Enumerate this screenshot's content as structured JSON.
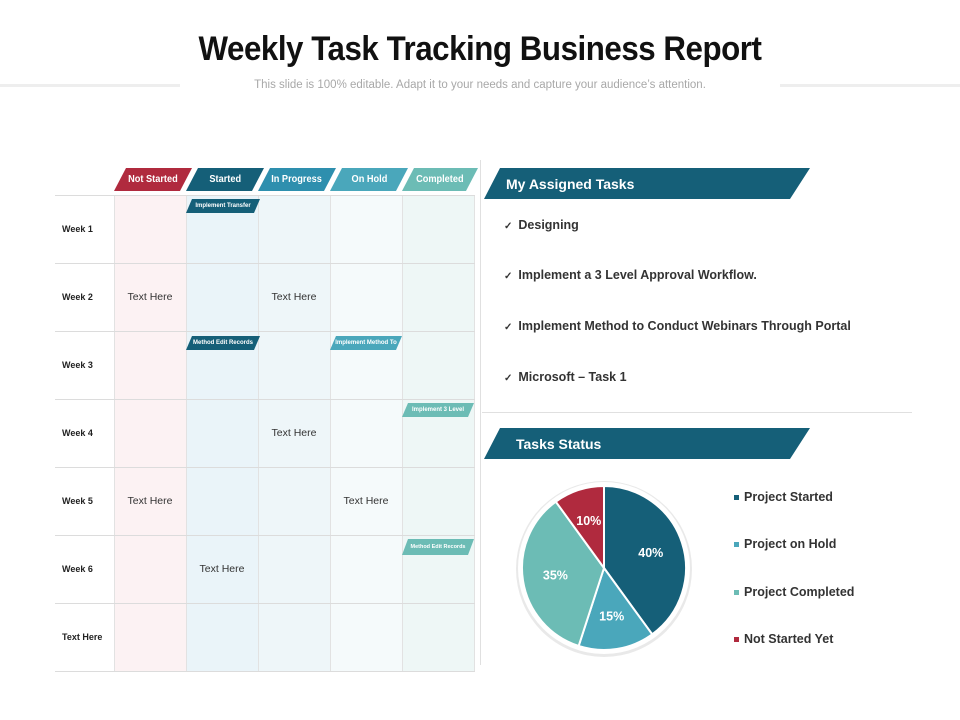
{
  "header": {
    "title": "Weekly Task Tracking Business Report",
    "subtitle": "This slide is 100% editable. Adapt it to your needs and capture your audience’s attention."
  },
  "grid": {
    "columns": [
      {
        "label": "Not Started",
        "color": "#b02a3e",
        "bg": "#fcf2f3"
      },
      {
        "label": "Started",
        "color": "#155f78",
        "bg": "#eaf4f9"
      },
      {
        "label": "In Progress",
        "color": "#2e8fae",
        "bg": "#eef6f9"
      },
      {
        "label": "On Hold",
        "color": "#4aa7bb",
        "bg": "#f5fafb"
      },
      {
        "label": "Completed",
        "color": "#6cbcb5",
        "bg": "#eef7f6"
      }
    ],
    "rows": [
      "Week 1",
      "Week 2",
      "Week 3",
      "Week 4",
      "Week 5",
      "Week 6",
      "Text Here"
    ],
    "cells": {
      "w2_not_started": "Text Here",
      "w2_in_progress": "Text Here",
      "w4_in_progress": "Text Here",
      "w5_not_started": "Text Here",
      "w5_on_hold": "Text Here",
      "w6_started": "Text Here"
    },
    "tags": {
      "w1_started": "Implement Transfer",
      "w3_started": "Method Edit Records",
      "w3_on_hold": "Implement Method To",
      "w4_completed": "Implement 3 Level",
      "w6_completed": "Method Edit Records"
    }
  },
  "assigned": {
    "title": "My Assigned Tasks",
    "items": [
      "Designing",
      "Implement a 3 Level Approval Workflow.",
      "Implement Method to Conduct Webinars Through Portal",
      "Microsoft  – Task 1"
    ]
  },
  "status": {
    "title": "Tasks Status"
  },
  "chart_data": {
    "type": "pie",
    "slices": [
      {
        "label": "Project Started",
        "value": 40,
        "display": "40%",
        "color": "#155f78"
      },
      {
        "label": "Project on Hold",
        "value": 15,
        "display": "15%",
        "color": "#4aa7bb"
      },
      {
        "label": "Project Completed",
        "value": 35,
        "display": "35%",
        "color": "#6cbcb5"
      },
      {
        "label": "Not Started Yet",
        "value": 10,
        "display": "10%",
        "color": "#b02a3e"
      }
    ],
    "legend_position": "right"
  }
}
